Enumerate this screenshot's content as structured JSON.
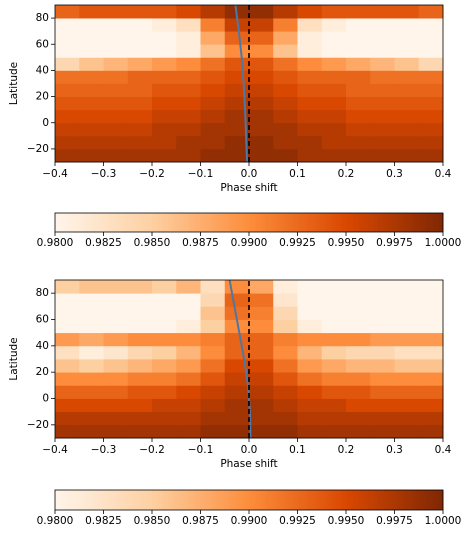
{
  "chart_data": [
    {
      "type": "heatmap",
      "xlabel": "Phase shift",
      "ylabel": "Latitude",
      "xlim": [
        -0.4,
        0.4
      ],
      "ylim": [
        -30,
        90
      ],
      "xticks": [
        {
          "value": -0.4,
          "label": "−0.4"
        },
        {
          "value": -0.3,
          "label": "−0.3"
        },
        {
          "value": -0.2,
          "label": "−0.2"
        },
        {
          "value": -0.1,
          "label": "−0.1"
        },
        {
          "value": 0,
          "label": "0.0"
        },
        0.1,
        0.2,
        0.3,
        0.4
      ],
      "yticks": [
        {
          "value": -20,
          "label": "−20"
        },
        0,
        20,
        40,
        60,
        80
      ],
      "x_edges": [
        -0.4,
        -0.35,
        -0.3,
        -0.25,
        -0.2,
        -0.15,
        -0.1,
        -0.05,
        0,
        0.05,
        0.1,
        0.15,
        0.2,
        0.25,
        0.3,
        0.35,
        0.4
      ],
      "y_edges": [
        -30,
        -20,
        -10,
        0,
        10,
        20,
        30,
        40,
        50,
        60,
        70,
        80,
        90
      ],
      "z": [
        [
          0.998,
          0.998,
          0.998,
          0.998,
          0.998,
          0.998,
          0.999,
          0.999,
          0.999,
          0.999,
          0.998,
          0.998,
          0.998,
          0.998,
          0.998,
          0.998
        ],
        [
          0.997,
          0.997,
          0.997,
          0.997,
          0.997,
          0.998,
          0.998,
          0.999,
          0.999,
          0.998,
          0.998,
          0.997,
          0.997,
          0.997,
          0.997,
          0.997
        ],
        [
          0.996,
          0.996,
          0.996,
          0.996,
          0.997,
          0.997,
          0.998,
          0.998,
          0.998,
          0.998,
          0.997,
          0.997,
          0.996,
          0.996,
          0.996,
          0.996
        ],
        [
          0.995,
          0.995,
          0.995,
          0.995,
          0.996,
          0.996,
          0.997,
          0.998,
          0.998,
          0.997,
          0.996,
          0.996,
          0.995,
          0.995,
          0.995,
          0.995
        ],
        [
          0.994,
          0.994,
          0.994,
          0.994,
          0.995,
          0.995,
          0.996,
          0.997,
          0.997,
          0.996,
          0.995,
          0.995,
          0.994,
          0.994,
          0.994,
          0.994
        ],
        [
          0.993,
          0.993,
          0.993,
          0.993,
          0.994,
          0.994,
          0.995,
          0.996,
          0.996,
          0.995,
          0.994,
          0.994,
          0.993,
          0.993,
          0.993,
          0.993
        ],
        [
          0.992,
          0.992,
          0.992,
          0.993,
          0.993,
          0.993,
          0.994,
          0.995,
          0.995,
          0.994,
          0.993,
          0.993,
          0.993,
          0.992,
          0.992,
          0.992
        ],
        [
          0.984,
          0.986,
          0.987,
          0.988,
          0.989,
          0.99,
          0.992,
          0.994,
          0.994,
          0.992,
          0.99,
          0.989,
          0.988,
          0.987,
          0.986,
          0.984
        ],
        [
          0.98,
          0.98,
          0.98,
          0.98,
          0.98,
          0.981,
          0.986,
          0.99,
          0.99,
          0.986,
          0.981,
          0.98,
          0.98,
          0.98,
          0.98,
          0.98
        ],
        [
          0.98,
          0.98,
          0.98,
          0.98,
          0.98,
          0.981,
          0.988,
          0.993,
          0.993,
          0.988,
          0.981,
          0.98,
          0.98,
          0.98,
          0.98,
          0.98
        ],
        [
          0.98,
          0.98,
          0.98,
          0.98,
          0.981,
          0.983,
          0.991,
          0.996,
          0.996,
          0.991,
          0.983,
          0.981,
          0.98,
          0.98,
          0.98,
          0.98
        ],
        [
          0.993,
          0.994,
          0.994,
          0.994,
          0.994,
          0.995,
          0.997,
          0.999,
          0.999,
          0.997,
          0.995,
          0.994,
          0.994,
          0.994,
          0.994,
          0.993
        ]
      ],
      "lines": [
        {
          "color": "#4c78a8",
          "x": [
            -0.004,
            -0.006,
            -0.008,
            -0.011,
            -0.015,
            -0.021,
            -0.028
          ],
          "y": [
            -30,
            -10,
            10,
            30,
            50,
            70,
            90
          ]
        },
        {
          "color": "#000000",
          "dashed": true,
          "x": [
            0,
            0
          ],
          "y": [
            -30,
            90
          ]
        }
      ],
      "clim": [
        0.98,
        1.0
      ],
      "cticks": [
        {
          "value": 0.98,
          "label": "0.9800"
        },
        {
          "value": 0.9825,
          "label": "0.9825"
        },
        {
          "value": 0.985,
          "label": "0.9850"
        },
        {
          "value": 0.9875,
          "label": "0.9875"
        },
        {
          "value": 0.99,
          "label": "0.9900"
        },
        {
          "value": 0.9925,
          "label": "0.9925"
        },
        {
          "value": 0.995,
          "label": "0.9950"
        },
        {
          "value": 0.9975,
          "label": "0.9975"
        },
        {
          "value": 1.0,
          "label": "1.0000"
        }
      ],
      "colormap": [
        "#fff5eb",
        "#fdd0a2",
        "#fd8d3c",
        "#d94801",
        "#7f2704"
      ]
    },
    {
      "type": "heatmap",
      "xlabel": "Phase shift",
      "ylabel": "Latitude",
      "xlim": [
        -0.4,
        0.4
      ],
      "ylim": [
        -30,
        90
      ],
      "xticks": [
        {
          "value": -0.4,
          "label": "−0.4"
        },
        {
          "value": -0.3,
          "label": "−0.3"
        },
        {
          "value": -0.2,
          "label": "−0.2"
        },
        {
          "value": -0.1,
          "label": "−0.1"
        },
        {
          "value": 0,
          "label": "0.0"
        },
        0.1,
        0.2,
        0.3,
        0.4
      ],
      "yticks": [
        {
          "value": -20,
          "label": "−20"
        },
        0,
        20,
        40,
        60,
        80
      ],
      "x_edges": [
        -0.4,
        -0.35,
        -0.3,
        -0.25,
        -0.2,
        -0.15,
        -0.1,
        -0.05,
        0,
        0.05,
        0.1,
        0.15,
        0.2,
        0.25,
        0.3,
        0.35,
        0.4
      ],
      "y_edges": [
        -30,
        -20,
        -10,
        0,
        10,
        20,
        30,
        40,
        50,
        60,
        70,
        80,
        90
      ],
      "z": [
        [
          0.998,
          0.998,
          0.998,
          0.998,
          0.998,
          0.998,
          0.999,
          0.999,
          0.999,
          0.999,
          0.998,
          0.998,
          0.998,
          0.998,
          0.998,
          0.998
        ],
        [
          0.997,
          0.997,
          0.997,
          0.997,
          0.997,
          0.997,
          0.998,
          0.998,
          0.998,
          0.998,
          0.997,
          0.997,
          0.997,
          0.997,
          0.997,
          0.997
        ],
        [
          0.995,
          0.995,
          0.995,
          0.995,
          0.996,
          0.996,
          0.997,
          0.998,
          0.998,
          0.997,
          0.996,
          0.996,
          0.995,
          0.995,
          0.995,
          0.995
        ],
        [
          0.993,
          0.993,
          0.993,
          0.994,
          0.994,
          0.995,
          0.996,
          0.997,
          0.997,
          0.996,
          0.995,
          0.994,
          0.994,
          0.993,
          0.993,
          0.993
        ],
        [
          0.99,
          0.99,
          0.99,
          0.991,
          0.991,
          0.992,
          0.994,
          0.996,
          0.996,
          0.994,
          0.992,
          0.991,
          0.991,
          0.99,
          0.99,
          0.99
        ],
        [
          0.986,
          0.985,
          0.986,
          0.987,
          0.988,
          0.989,
          0.992,
          0.995,
          0.995,
          0.992,
          0.989,
          0.988,
          0.987,
          0.987,
          0.986,
          0.986
        ],
        [
          0.983,
          0.981,
          0.982,
          0.984,
          0.985,
          0.987,
          0.99,
          0.993,
          0.993,
          0.99,
          0.987,
          0.985,
          0.984,
          0.984,
          0.983,
          0.983
        ],
        [
          0.989,
          0.988,
          0.989,
          0.99,
          0.99,
          0.99,
          0.991,
          0.993,
          0.993,
          0.991,
          0.99,
          0.99,
          0.99,
          0.989,
          0.989,
          0.989
        ],
        [
          0.98,
          0.98,
          0.98,
          0.98,
          0.98,
          0.981,
          0.985,
          0.99,
          0.99,
          0.985,
          0.981,
          0.98,
          0.98,
          0.98,
          0.98,
          0.98
        ],
        [
          0.98,
          0.98,
          0.98,
          0.98,
          0.98,
          0.98,
          0.986,
          0.992,
          0.991,
          0.984,
          0.98,
          0.98,
          0.98,
          0.98,
          0.98,
          0.98
        ],
        [
          0.98,
          0.98,
          0.98,
          0.98,
          0.98,
          0.98,
          0.984,
          0.993,
          0.992,
          0.982,
          0.98,
          0.98,
          0.98,
          0.98,
          0.98,
          0.98
        ],
        [
          0.985,
          0.986,
          0.986,
          0.986,
          0.985,
          0.987,
          0.983,
          0.99,
          0.988,
          0.981,
          0.98,
          0.98,
          0.98,
          0.98,
          0.98,
          0.98
        ]
      ],
      "lines": [
        {
          "color": "#4c78a8",
          "x": [
            0.003,
            0.002,
            -0.002,
            -0.01,
            -0.02,
            -0.03,
            -0.04
          ],
          "y": [
            -30,
            -10,
            10,
            30,
            50,
            70,
            90
          ]
        },
        {
          "color": "#000000",
          "dashed": true,
          "x": [
            0,
            0
          ],
          "y": [
            -30,
            90
          ]
        }
      ],
      "clim": [
        0.98,
        1.0
      ],
      "cticks": [
        {
          "value": 0.98,
          "label": "0.9800"
        },
        {
          "value": 0.9825,
          "label": "0.9825"
        },
        {
          "value": 0.985,
          "label": "0.9850"
        },
        {
          "value": 0.9875,
          "label": "0.9875"
        },
        {
          "value": 0.99,
          "label": "0.9900"
        },
        {
          "value": 0.9925,
          "label": "0.9925"
        },
        {
          "value": 0.995,
          "label": "0.9950"
        },
        {
          "value": 0.9975,
          "label": "0.9975"
        },
        {
          "value": 1.0,
          "label": "1.0000"
        }
      ],
      "colormap": [
        "#fff5eb",
        "#fdd0a2",
        "#fd8d3c",
        "#d94801",
        "#7f2704"
      ]
    }
  ]
}
